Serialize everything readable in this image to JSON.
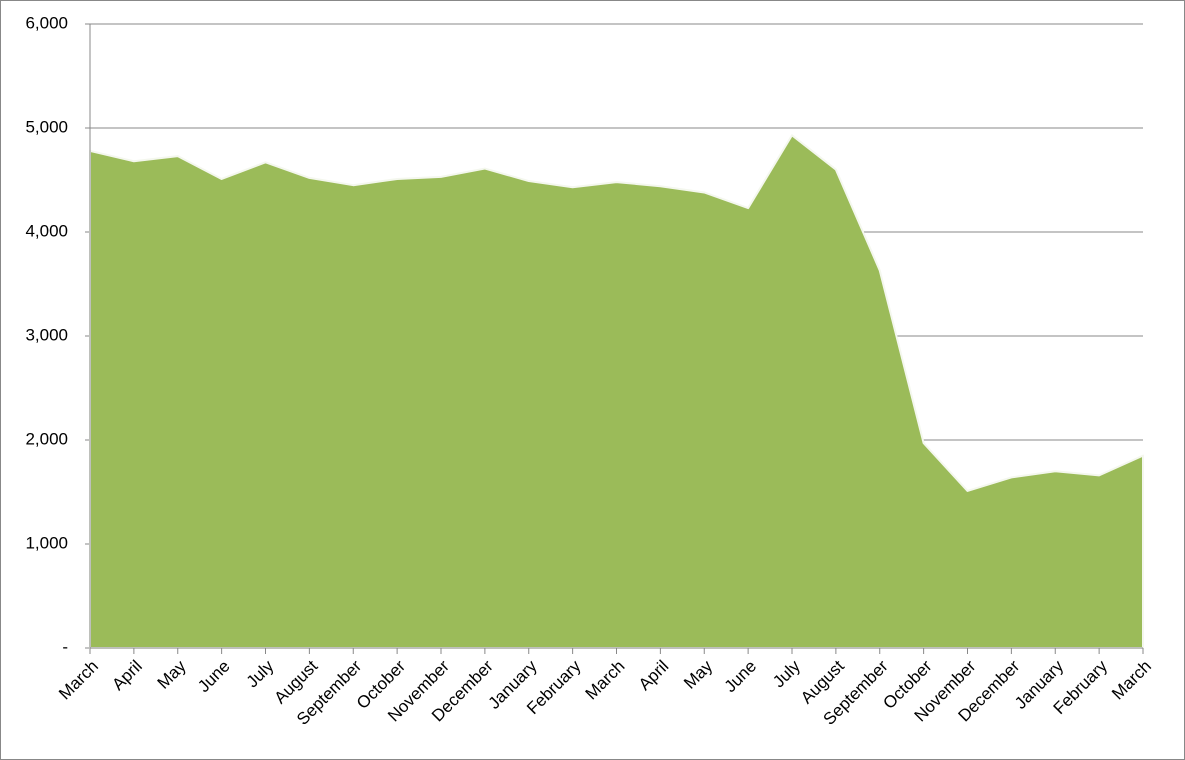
{
  "chart_data": {
    "type": "area",
    "categories": [
      "March",
      "April",
      "May",
      "June",
      "July",
      "August",
      "September",
      "October",
      "November",
      "December",
      "January",
      "February",
      "March",
      "April",
      "May",
      "June",
      "July",
      "August",
      "September",
      "October",
      "November",
      "December",
      "January",
      "February",
      "March"
    ],
    "values": [
      4780,
      4680,
      4730,
      4510,
      4670,
      4520,
      4450,
      4510,
      4530,
      4610,
      4490,
      4430,
      4480,
      4440,
      4380,
      4230,
      4930,
      4600,
      3630,
      1970,
      1510,
      1640,
      1700,
      1660,
      1850
    ],
    "color": "#9bbb59",
    "ylim": [
      0,
      6000
    ],
    "yticks": [
      {
        "value": 0,
        "label": "-"
      },
      {
        "value": 1000,
        "label": "1,000"
      },
      {
        "value": 2000,
        "label": "2,000"
      },
      {
        "value": 3000,
        "label": "3,000"
      },
      {
        "value": 4000,
        "label": "4,000"
      },
      {
        "value": 5000,
        "label": "5,000"
      },
      {
        "value": 6000,
        "label": "6,000"
      }
    ],
    "grid": true
  }
}
